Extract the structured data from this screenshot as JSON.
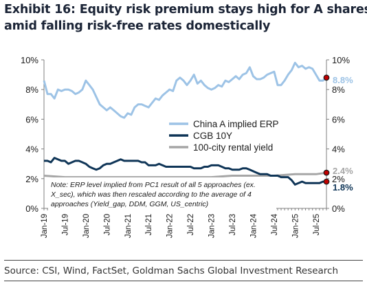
{
  "title_lines": [
    "Exhibit 16: Equity risk premium stays high for A shares",
    "amid falling risk-free rates domestically"
  ],
  "source": "Source: CSI, Wind, FactSet, Goldman Sachs Global Investment Research",
  "note_lines": [
    "Note: ERP level implied from PC1 result of all 5 approaches (ex.",
    "X_sec), which was then rescaled according to the average of 4",
    "approaches (Yield_gap, DDM, GGM, US_centric)"
  ],
  "chart_data": {
    "type": "line",
    "title": "Exhibit 16: Equity risk premium stays high for A shares amid falling risk-free rates domestically",
    "xlabel": "",
    "ylabel": "",
    "x_ticks": [
      "Jan-19",
      "Jul-19",
      "Jan-20",
      "Jul-20",
      "Jan-21",
      "Jul-21",
      "Jan-22",
      "Jul-22",
      "Jan-23",
      "Jul-23",
      "Jan-24",
      "Jul-24",
      "Jan-25",
      "Jul-25"
    ],
    "x_range": [
      "2019-01",
      "2025-10"
    ],
    "ylim": [
      0,
      10
    ],
    "y_ticks": [
      "0%",
      "2%",
      "4%",
      "6%",
      "8%",
      "10%"
    ],
    "y_ticks_right": [
      "0%",
      "2%",
      "4%",
      "6%",
      "8%",
      "10%"
    ],
    "grid": false,
    "legend_position": "center-right",
    "series": [
      {
        "name": "China A implied ERP",
        "color": "#9dc3e6",
        "end_label": "8.8%",
        "x": [
          "2019-01",
          "2019-02",
          "2019-03",
          "2019-04",
          "2019-05",
          "2019-06",
          "2019-07",
          "2019-08",
          "2019-09",
          "2019-10",
          "2019-11",
          "2019-12",
          "2020-01",
          "2020-02",
          "2020-03",
          "2020-04",
          "2020-05",
          "2020-06",
          "2020-07",
          "2020-08",
          "2020-09",
          "2020-10",
          "2020-11",
          "2020-12",
          "2021-01",
          "2021-02",
          "2021-03",
          "2021-04",
          "2021-05",
          "2021-06",
          "2021-07",
          "2021-08",
          "2021-09",
          "2021-10",
          "2021-11",
          "2021-12",
          "2022-01",
          "2022-02",
          "2022-03",
          "2022-04",
          "2022-05",
          "2022-06",
          "2022-07",
          "2022-08",
          "2022-09",
          "2022-10",
          "2022-11",
          "2022-12",
          "2023-01",
          "2023-02",
          "2023-03",
          "2023-04",
          "2023-05",
          "2023-06",
          "2023-07",
          "2023-08",
          "2023-09",
          "2023-10",
          "2023-11",
          "2023-12",
          "2024-01",
          "2024-02",
          "2024-03",
          "2024-04",
          "2024-05",
          "2024-06",
          "2024-07",
          "2024-08",
          "2024-09",
          "2024-10",
          "2024-11",
          "2024-12",
          "2025-01",
          "2025-02",
          "2025-03",
          "2025-04",
          "2025-05",
          "2025-06",
          "2025-07",
          "2025-08",
          "2025-09",
          "2025-10"
        ],
        "values": [
          8.6,
          7.7,
          7.7,
          7.4,
          8.0,
          7.9,
          8.0,
          8.0,
          7.9,
          7.7,
          7.8,
          8.0,
          8.6,
          8.3,
          8.0,
          7.5,
          7.0,
          6.8,
          6.6,
          6.8,
          6.6,
          6.4,
          6.2,
          6.1,
          6.4,
          6.3,
          6.8,
          7.0,
          7.0,
          6.9,
          6.8,
          7.1,
          7.4,
          7.3,
          7.6,
          7.8,
          8.0,
          7.9,
          8.6,
          8.8,
          8.6,
          8.3,
          8.6,
          9.0,
          8.4,
          8.6,
          8.3,
          8.1,
          8.0,
          8.1,
          8.3,
          8.2,
          8.6,
          8.5,
          8.7,
          8.9,
          8.7,
          9.0,
          9.1,
          9.5,
          8.9,
          8.7,
          8.7,
          8.8,
          9.0,
          9.1,
          9.2,
          8.3,
          8.3,
          8.6,
          9.0,
          9.3,
          9.8,
          9.5,
          9.6,
          9.4,
          9.5,
          9.4,
          9.0,
          8.6,
          8.6,
          8.8
        ]
      },
      {
        "name": "CGB 10Y",
        "color": "#0f3557",
        "end_label": "1.8%",
        "x": [
          "2019-01",
          "2019-02",
          "2019-03",
          "2019-04",
          "2019-05",
          "2019-06",
          "2019-07",
          "2019-08",
          "2019-09",
          "2019-10",
          "2019-11",
          "2019-12",
          "2020-01",
          "2020-02",
          "2020-03",
          "2020-04",
          "2020-05",
          "2020-06",
          "2020-07",
          "2020-08",
          "2020-09",
          "2020-10",
          "2020-11",
          "2020-12",
          "2021-01",
          "2021-02",
          "2021-03",
          "2021-04",
          "2021-05",
          "2021-06",
          "2021-07",
          "2021-08",
          "2021-09",
          "2021-10",
          "2021-11",
          "2021-12",
          "2022-01",
          "2022-02",
          "2022-03",
          "2022-04",
          "2022-05",
          "2022-06",
          "2022-07",
          "2022-08",
          "2022-09",
          "2022-10",
          "2022-11",
          "2022-12",
          "2023-01",
          "2023-02",
          "2023-03",
          "2023-04",
          "2023-05",
          "2023-06",
          "2023-07",
          "2023-08",
          "2023-09",
          "2023-10",
          "2023-11",
          "2023-12",
          "2024-01",
          "2024-02",
          "2024-03",
          "2024-04",
          "2024-05",
          "2024-06",
          "2024-07",
          "2024-08",
          "2024-09",
          "2024-10",
          "2024-11",
          "2024-12",
          "2025-01",
          "2025-02",
          "2025-03",
          "2025-04",
          "2025-05",
          "2025-06",
          "2025-07",
          "2025-08",
          "2025-09",
          "2025-10"
        ],
        "values": [
          3.2,
          3.2,
          3.1,
          3.4,
          3.3,
          3.2,
          3.2,
          3.0,
          3.1,
          3.2,
          3.2,
          3.1,
          3.0,
          2.8,
          2.7,
          2.6,
          2.7,
          2.9,
          3.0,
          3.0,
          3.1,
          3.2,
          3.3,
          3.2,
          3.2,
          3.2,
          3.2,
          3.2,
          3.1,
          3.1,
          2.9,
          2.9,
          2.9,
          3.0,
          2.9,
          2.8,
          2.8,
          2.8,
          2.8,
          2.8,
          2.8,
          2.8,
          2.8,
          2.7,
          2.7,
          2.7,
          2.8,
          2.8,
          2.9,
          2.9,
          2.9,
          2.8,
          2.7,
          2.7,
          2.6,
          2.6,
          2.6,
          2.7,
          2.7,
          2.6,
          2.5,
          2.4,
          2.3,
          2.3,
          2.3,
          2.2,
          2.2,
          2.2,
          2.1,
          2.1,
          2.1,
          1.9,
          1.6,
          1.7,
          1.8,
          1.7,
          1.7,
          1.7,
          1.7,
          1.7,
          1.8,
          1.8
        ]
      },
      {
        "name": "100-city rental yield",
        "color": "#a6a6a6",
        "end_label": "2.4%",
        "x": [
          "2019-01",
          "2019-07",
          "2020-01",
          "2020-07",
          "2021-01",
          "2021-07",
          "2022-01",
          "2022-07",
          "2023-01",
          "2023-07",
          "2024-01",
          "2024-07",
          "2025-01",
          "2025-07",
          "2025-10"
        ],
        "values": [
          2.2,
          2.1,
          2.1,
          2.1,
          2.1,
          2.1,
          2.1,
          2.1,
          2.1,
          2.2,
          2.2,
          2.2,
          2.3,
          2.3,
          2.4
        ]
      }
    ]
  }
}
